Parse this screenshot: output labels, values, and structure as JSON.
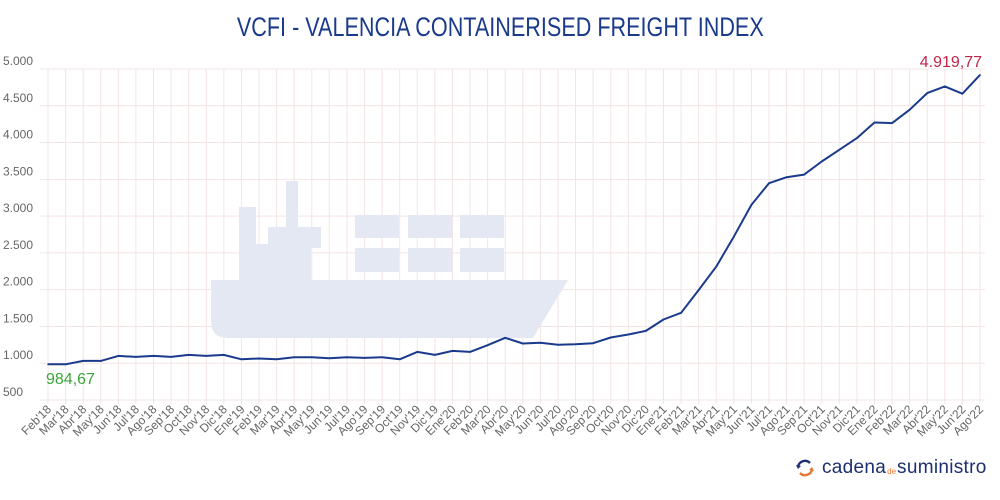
{
  "title": "VCFI - VALENCIA CONTAINERISED FREIGHT INDEX",
  "colors": {
    "line": "#1a3a8c",
    "first_label": "#3aa63a",
    "last_label": "#c0264a",
    "grid": "#f3e4e4",
    "ship": "#e3e8f3"
  },
  "logo": {
    "part1": "cadena",
    "part2": "de",
    "part3": "suministro",
    "icon": "circular-arrows-icon"
  },
  "chart_data": {
    "type": "line",
    "title": "VCFI - VALENCIA CONTAINERISED FREIGHT INDEX",
    "xlabel": "",
    "ylabel": "",
    "ylim": [
      500,
      5000
    ],
    "yticks": [
      "500",
      "1.000",
      "1.500",
      "2.000",
      "2.500",
      "3.000",
      "3.500",
      "4.000",
      "4.500",
      "5.000"
    ],
    "grid": true,
    "categories": [
      "Feb'18",
      "Mar'18",
      "Abr'18",
      "May'18",
      "Jun'18",
      "Jul'18",
      "Ago'18",
      "Sep'18",
      "Oct'18",
      "Nov'18",
      "Dic'18",
      "Ene'19",
      "Feb'19",
      "Mar'19",
      "Abr'19",
      "May'19",
      "Jun'19",
      "Jul'19",
      "Ago'19",
      "Sep'19",
      "Oct'19",
      "Nov'19",
      "Dic'19",
      "Ene'20",
      "Feb'20",
      "Mar'20",
      "Abr'20",
      "May'20",
      "Jun'20",
      "Jul'20",
      "Ago'20",
      "Sep'20",
      "Oct'20",
      "Nov'20",
      "Dic'20",
      "Ene'21",
      "Feb'21",
      "Mar'21",
      "Abr'21",
      "May'21",
      "Jun'21",
      "Jul'21",
      "Ago'21",
      "Sep'21",
      "Oct'21",
      "Nov'21",
      "Dic'21",
      "Ene'22",
      "Feb'22",
      "Mar'22",
      "Abr'22",
      "May'22",
      "Jun'22",
      "Ago'22"
    ],
    "values": [
      984.67,
      985,
      1031,
      1031,
      1100,
      1086,
      1100,
      1086,
      1113,
      1100,
      1113,
      1054,
      1064,
      1054,
      1082,
      1082,
      1068,
      1082,
      1073,
      1082,
      1054,
      1154,
      1113,
      1168,
      1154,
      1245,
      1345,
      1268,
      1277,
      1250,
      1259,
      1272,
      1350,
      1390,
      1440,
      1595,
      1686,
      1994,
      2312,
      2720,
      3152,
      3447,
      3529,
      3565,
      3742,
      3901,
      4060,
      4273,
      4264,
      4446,
      4673,
      4764,
      4664,
      4919.77
    ],
    "annotations": {
      "first": "984,67",
      "last": "4.919,77"
    }
  }
}
